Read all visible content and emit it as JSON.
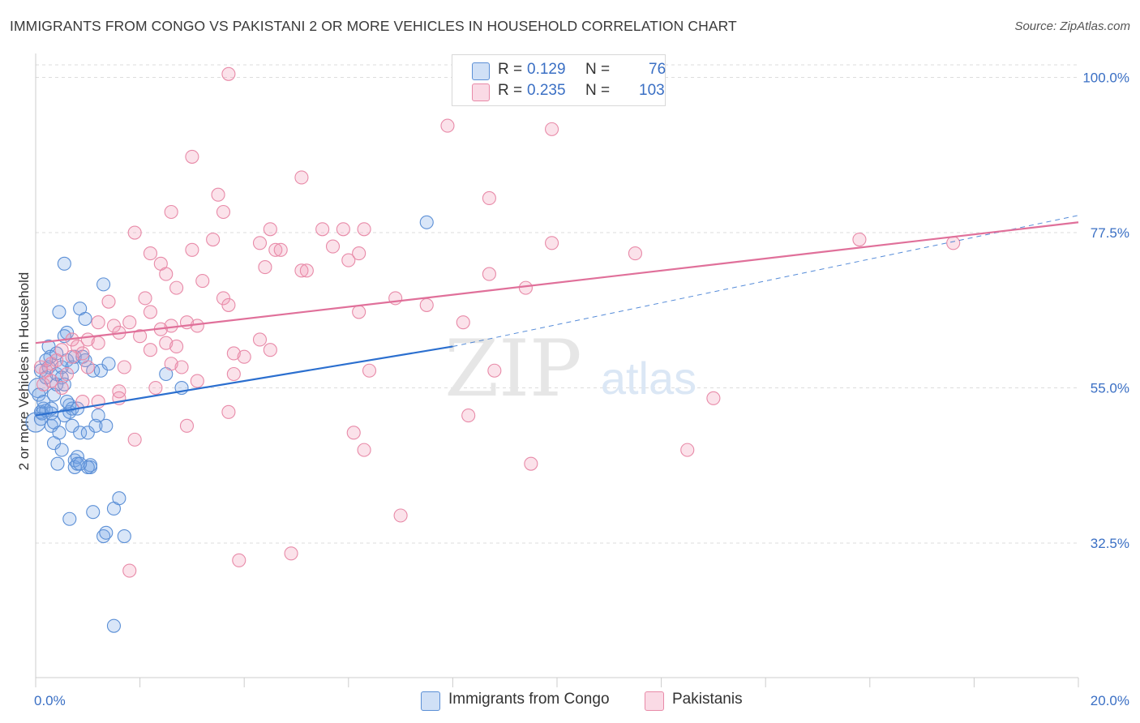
{
  "title": "IMMIGRANTS FROM CONGO VS PAKISTANI 2 OR MORE VEHICLES IN HOUSEHOLD CORRELATION CHART",
  "source": "Source: ZipAtlas.com",
  "watermark": {
    "zip": "ZIP",
    "atlas": "atlas"
  },
  "legend_top": [
    {
      "r_label": "R =",
      "r_value": "0.129",
      "n_label": "N =",
      "n_value": "76"
    },
    {
      "r_label": "R =",
      "r_value": "0.235",
      "n_label": "N =",
      "n_value": "103"
    }
  ],
  "legend_bottom": [
    "Immigrants from Congo",
    "Pakistanis"
  ],
  "colors": {
    "congo_fill": "rgba(120,165,230,0.28)",
    "congo_stroke": "#5b8fd6",
    "congo_line": "#2b6fcf",
    "pak_fill": "rgba(240,150,180,0.28)",
    "pak_stroke": "#e88aa8",
    "pak_line": "#e0709a",
    "axis_text": "#3a6fc4",
    "grid": "#dddddd"
  },
  "chart_data": {
    "type": "scatter",
    "title": "IMMIGRANTS FROM CONGO VS PAKISTANI 2 OR MORE VEHICLES IN HOUSEHOLD CORRELATION CHART",
    "xlabel": "",
    "ylabel": "2 or more Vehicles in Household",
    "xlim": [
      0,
      20
    ],
    "ylim": [
      13,
      103
    ],
    "x_ticks": [
      "0.0%",
      "20.0%"
    ],
    "y_ticks": [
      {
        "value": 100.0,
        "label": "100.0%"
      },
      {
        "value": 77.5,
        "label": "77.5%"
      },
      {
        "value": 55.0,
        "label": "55.0%"
      },
      {
        "value": 32.5,
        "label": "32.5%"
      }
    ],
    "series": [
      {
        "name": "Immigrants from Congo",
        "r": 0.129,
        "n": 76,
        "trend": {
          "x0": 0,
          "y0": 51.0,
          "x1": 8.0,
          "y1": 61.0,
          "dash_to_x": 20,
          "dash_to_y": 80.0
        },
        "points": [
          [
            0.0,
            50.0,
            "l"
          ],
          [
            0.05,
            55.0,
            "l"
          ],
          [
            0.06,
            54.0
          ],
          [
            0.1,
            51.5
          ],
          [
            0.1,
            57.5
          ],
          [
            0.12,
            51.3
          ],
          [
            0.15,
            52.0
          ],
          [
            0.2,
            51.7
          ],
          [
            0.15,
            53.0
          ],
          [
            0.2,
            56.5
          ],
          [
            0.25,
            58.0
          ],
          [
            0.25,
            61.0
          ],
          [
            0.28,
            59.5
          ],
          [
            0.3,
            51.3
          ],
          [
            0.3,
            49.5
          ],
          [
            0.35,
            54.0
          ],
          [
            0.35,
            47.0
          ],
          [
            0.4,
            55.5
          ],
          [
            0.4,
            57.0
          ],
          [
            0.4,
            60.0
          ],
          [
            0.42,
            44.0
          ],
          [
            0.45,
            48.5
          ],
          [
            0.5,
            58.0
          ],
          [
            0.5,
            56.5
          ],
          [
            0.45,
            66.0
          ],
          [
            0.5,
            46.0
          ],
          [
            0.55,
            51.0
          ],
          [
            0.55,
            55.5
          ],
          [
            0.6,
            63.0
          ],
          [
            0.6,
            59.0
          ],
          [
            0.55,
            62.5
          ],
          [
            0.65,
            51.5
          ],
          [
            0.65,
            52.5
          ],
          [
            0.7,
            52.0
          ],
          [
            0.7,
            49.5
          ],
          [
            0.7,
            58.0
          ],
          [
            0.75,
            59.5
          ],
          [
            0.75,
            44.5
          ],
          [
            0.75,
            43.5
          ],
          [
            0.8,
            45.0
          ],
          [
            0.8,
            52.0
          ],
          [
            0.8,
            44.0
          ],
          [
            0.85,
            66.5
          ],
          [
            0.85,
            48.5
          ],
          [
            0.9,
            59.5
          ],
          [
            0.95,
            59.0
          ],
          [
            0.95,
            65.0
          ],
          [
            1.0,
            48.5
          ],
          [
            1.05,
            43.5
          ],
          [
            1.05,
            43.8
          ],
          [
            1.1,
            57.5
          ],
          [
            1.15,
            49.5
          ],
          [
            1.25,
            57.5
          ],
          [
            1.3,
            70.0
          ],
          [
            1.3,
            33.5
          ],
          [
            1.35,
            34.0
          ],
          [
            1.35,
            49.5
          ],
          [
            1.4,
            58.5
          ],
          [
            1.5,
            37.5
          ],
          [
            1.6,
            39.0
          ],
          [
            1.7,
            33.5
          ],
          [
            1.5,
            20.5
          ],
          [
            0.55,
            73.0
          ],
          [
            0.65,
            36.0
          ],
          [
            1.1,
            37.0
          ],
          [
            2.5,
            57.0
          ],
          [
            2.8,
            55.0
          ],
          [
            7.5,
            79.0
          ],
          [
            1.0,
            43.5
          ],
          [
            0.85,
            44.0
          ],
          [
            0.3,
            52.0
          ],
          [
            0.2,
            59.0
          ],
          [
            0.1,
            50.5
          ],
          [
            0.35,
            50.0
          ],
          [
            0.6,
            53.0
          ],
          [
            1.2,
            51.0
          ]
        ]
      },
      {
        "name": "Pakistanis",
        "r": 0.235,
        "n": 103,
        "trend": {
          "x0": 0,
          "y0": 61.5,
          "x1": 20,
          "y1": 79.0
        },
        "points": [
          [
            3.7,
            100.5
          ],
          [
            11.3,
            100.5
          ],
          [
            7.9,
            93.0
          ],
          [
            9.9,
            92.5
          ],
          [
            3.0,
            88.5
          ],
          [
            5.1,
            85.5
          ],
          [
            3.5,
            83.0
          ],
          [
            8.7,
            82.5
          ],
          [
            2.6,
            80.5
          ],
          [
            3.6,
            80.5
          ],
          [
            1.9,
            77.5
          ],
          [
            4.5,
            78.0
          ],
          [
            5.5,
            78.0
          ],
          [
            5.9,
            78.0
          ],
          [
            6.3,
            78.0
          ],
          [
            3.4,
            76.5
          ],
          [
            4.3,
            76.0
          ],
          [
            5.7,
            75.5
          ],
          [
            9.9,
            76.0
          ],
          [
            4.6,
            75.0
          ],
          [
            3.0,
            75.0
          ],
          [
            2.2,
            74.5
          ],
          [
            4.7,
            75.0
          ],
          [
            6.2,
            74.5
          ],
          [
            6.0,
            73.5
          ],
          [
            2.4,
            73.0
          ],
          [
            4.4,
            72.5
          ],
          [
            5.1,
            72.0
          ],
          [
            5.2,
            72.0
          ],
          [
            8.7,
            71.5
          ],
          [
            2.5,
            71.5
          ],
          [
            3.2,
            70.5
          ],
          [
            1.4,
            67.5
          ],
          [
            2.1,
            68.0
          ],
          [
            2.7,
            69.5
          ],
          [
            3.6,
            68.0
          ],
          [
            3.7,
            67.0
          ],
          [
            6.9,
            68.0
          ],
          [
            7.5,
            67.0
          ],
          [
            9.4,
            69.5
          ],
          [
            15.8,
            76.5
          ],
          [
            17.6,
            76.0
          ],
          [
            11.5,
            74.5
          ],
          [
            1.2,
            64.5
          ],
          [
            1.5,
            64.0
          ],
          [
            1.8,
            64.5
          ],
          [
            2.6,
            64.0
          ],
          [
            2.2,
            66.0
          ],
          [
            2.4,
            63.5
          ],
          [
            2.9,
            64.5
          ],
          [
            3.1,
            64.0
          ],
          [
            6.2,
            66.0
          ],
          [
            8.2,
            64.5
          ],
          [
            1.0,
            62.0
          ],
          [
            1.2,
            61.5
          ],
          [
            1.6,
            63.0
          ],
          [
            2.0,
            62.5
          ],
          [
            2.2,
            60.5
          ],
          [
            2.5,
            61.5
          ],
          [
            2.7,
            61.0
          ],
          [
            3.8,
            60.0
          ],
          [
            4.3,
            62.0
          ],
          [
            4.0,
            59.5
          ],
          [
            4.5,
            60.5
          ],
          [
            0.8,
            61.0
          ],
          [
            0.9,
            60.0
          ],
          [
            0.7,
            59.5
          ],
          [
            0.5,
            60.5
          ],
          [
            0.4,
            59.0
          ],
          [
            0.3,
            58.5
          ],
          [
            0.2,
            57.5
          ],
          [
            0.1,
            58.0
          ],
          [
            0.15,
            55.5
          ],
          [
            0.6,
            57.0
          ],
          [
            1.7,
            58.0
          ],
          [
            2.8,
            58.0
          ],
          [
            3.8,
            57.0
          ],
          [
            6.4,
            57.5
          ],
          [
            8.8,
            57.5
          ],
          [
            2.3,
            55.0
          ],
          [
            3.1,
            56.0
          ],
          [
            1.6,
            54.5
          ],
          [
            0.9,
            53.0
          ],
          [
            1.2,
            53.0
          ],
          [
            1.6,
            53.5
          ],
          [
            13.0,
            53.5
          ],
          [
            3.7,
            51.5
          ],
          [
            8.3,
            51.0
          ],
          [
            2.9,
            49.5
          ],
          [
            6.1,
            48.5
          ],
          [
            1.9,
            47.5
          ],
          [
            6.3,
            46.0
          ],
          [
            9.5,
            44.0
          ],
          [
            12.5,
            46.0
          ],
          [
            7.0,
            36.5
          ],
          [
            4.9,
            31.0
          ],
          [
            3.9,
            30.0
          ],
          [
            1.8,
            28.5
          ],
          [
            0.3,
            56.0
          ],
          [
            0.5,
            55.0
          ],
          [
            1.0,
            58.0
          ],
          [
            0.7,
            62.0
          ],
          [
            2.6,
            58.5
          ]
        ]
      }
    ]
  }
}
